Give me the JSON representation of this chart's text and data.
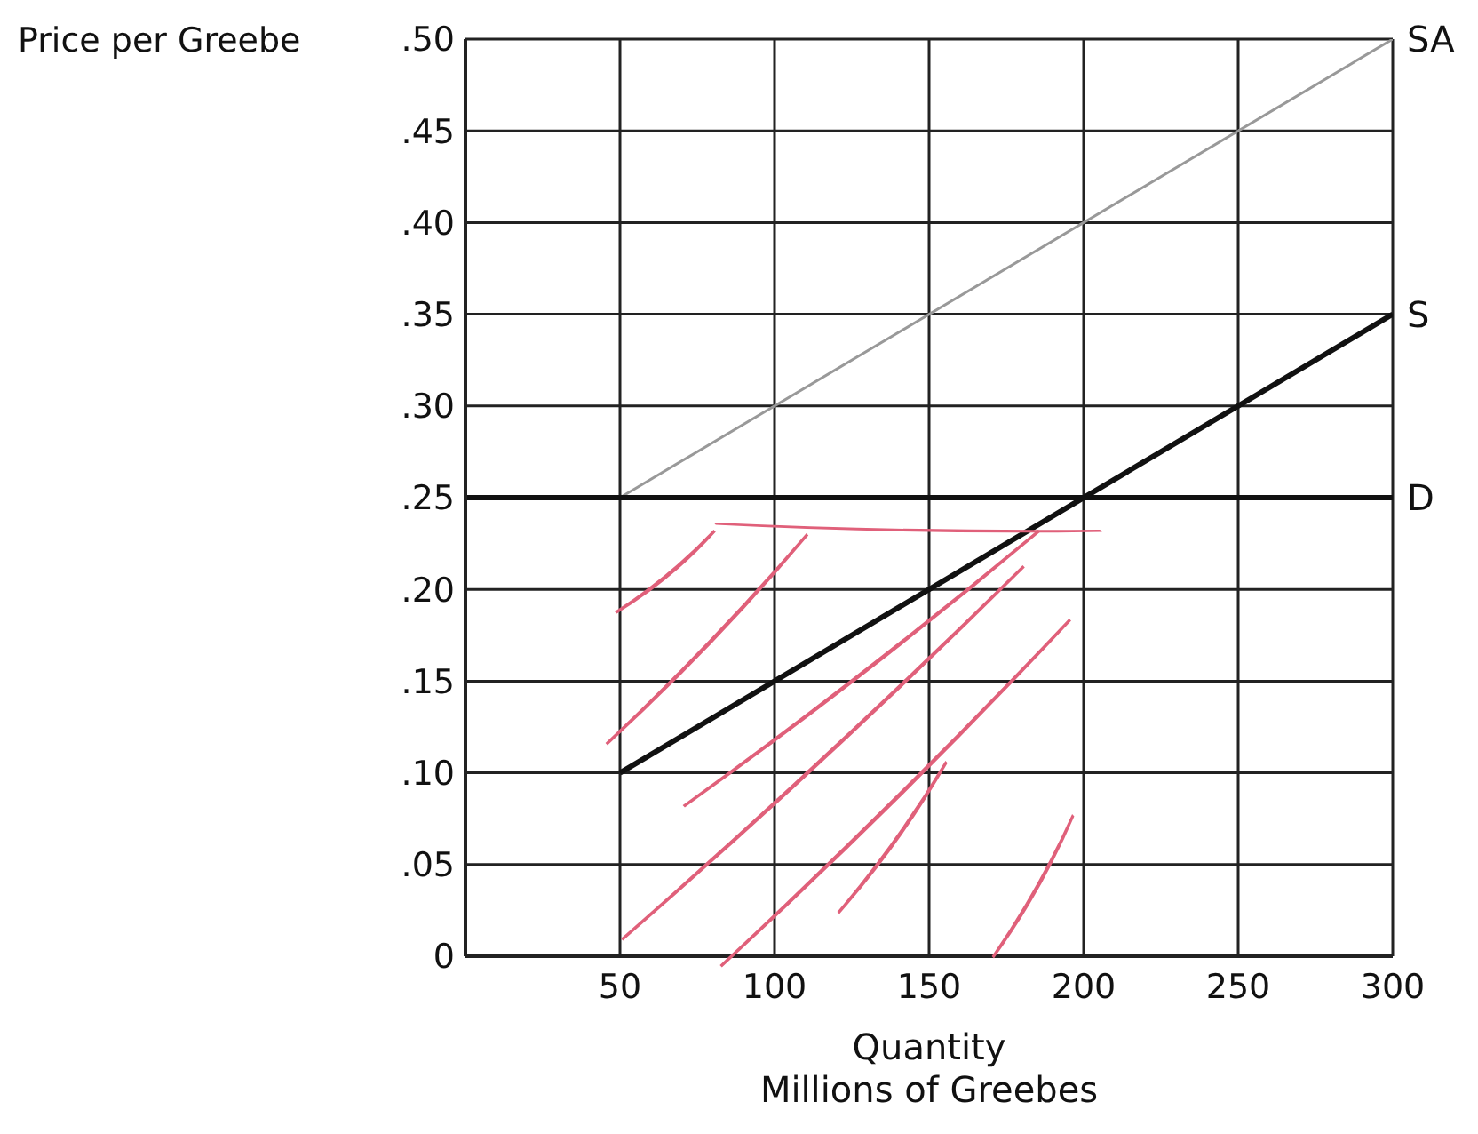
{
  "chart_data": {
    "type": "line",
    "ylabel": "Price per Greebe",
    "xlabel": "Quantity\nMillions of Greebes",
    "xlim": [
      0,
      300
    ],
    "xticks": [
      50,
      100,
      150,
      200,
      250,
      300
    ],
    "ylim": [
      0,
      0.5
    ],
    "yticks": [
      0,
      {
        "value": 0.05,
        "label": ".05"
      },
      {
        "value": 0.1,
        "label": ".10"
      },
      {
        "value": 0.15,
        "label": ".15"
      },
      {
        "value": 0.2,
        "label": ".20"
      },
      {
        "value": 0.25,
        "label": ".25"
      },
      {
        "value": 0.3,
        "label": ".30"
      },
      {
        "value": 0.35,
        "label": ".35"
      },
      {
        "value": 0.4,
        "label": ".40"
      },
      {
        "value": 0.45,
        "label": ".45"
      },
      {
        "value": 0.5,
        "label": ".50"
      }
    ],
    "grid": true,
    "legend": false,
    "marker": "none",
    "series": [
      {
        "name": "SA",
        "color": "#999999",
        "x": [
          50,
          300
        ],
        "values": [
          0.25,
          0.5
        ]
      },
      {
        "name": "S",
        "color": "#111111",
        "x": [
          50,
          300
        ],
        "values": [
          0.1,
          0.35
        ]
      },
      {
        "name": "D",
        "color": "#111111",
        "x": [
          0,
          300
        ],
        "values": [
          0.25,
          0.25
        ]
      }
    ]
  }
}
